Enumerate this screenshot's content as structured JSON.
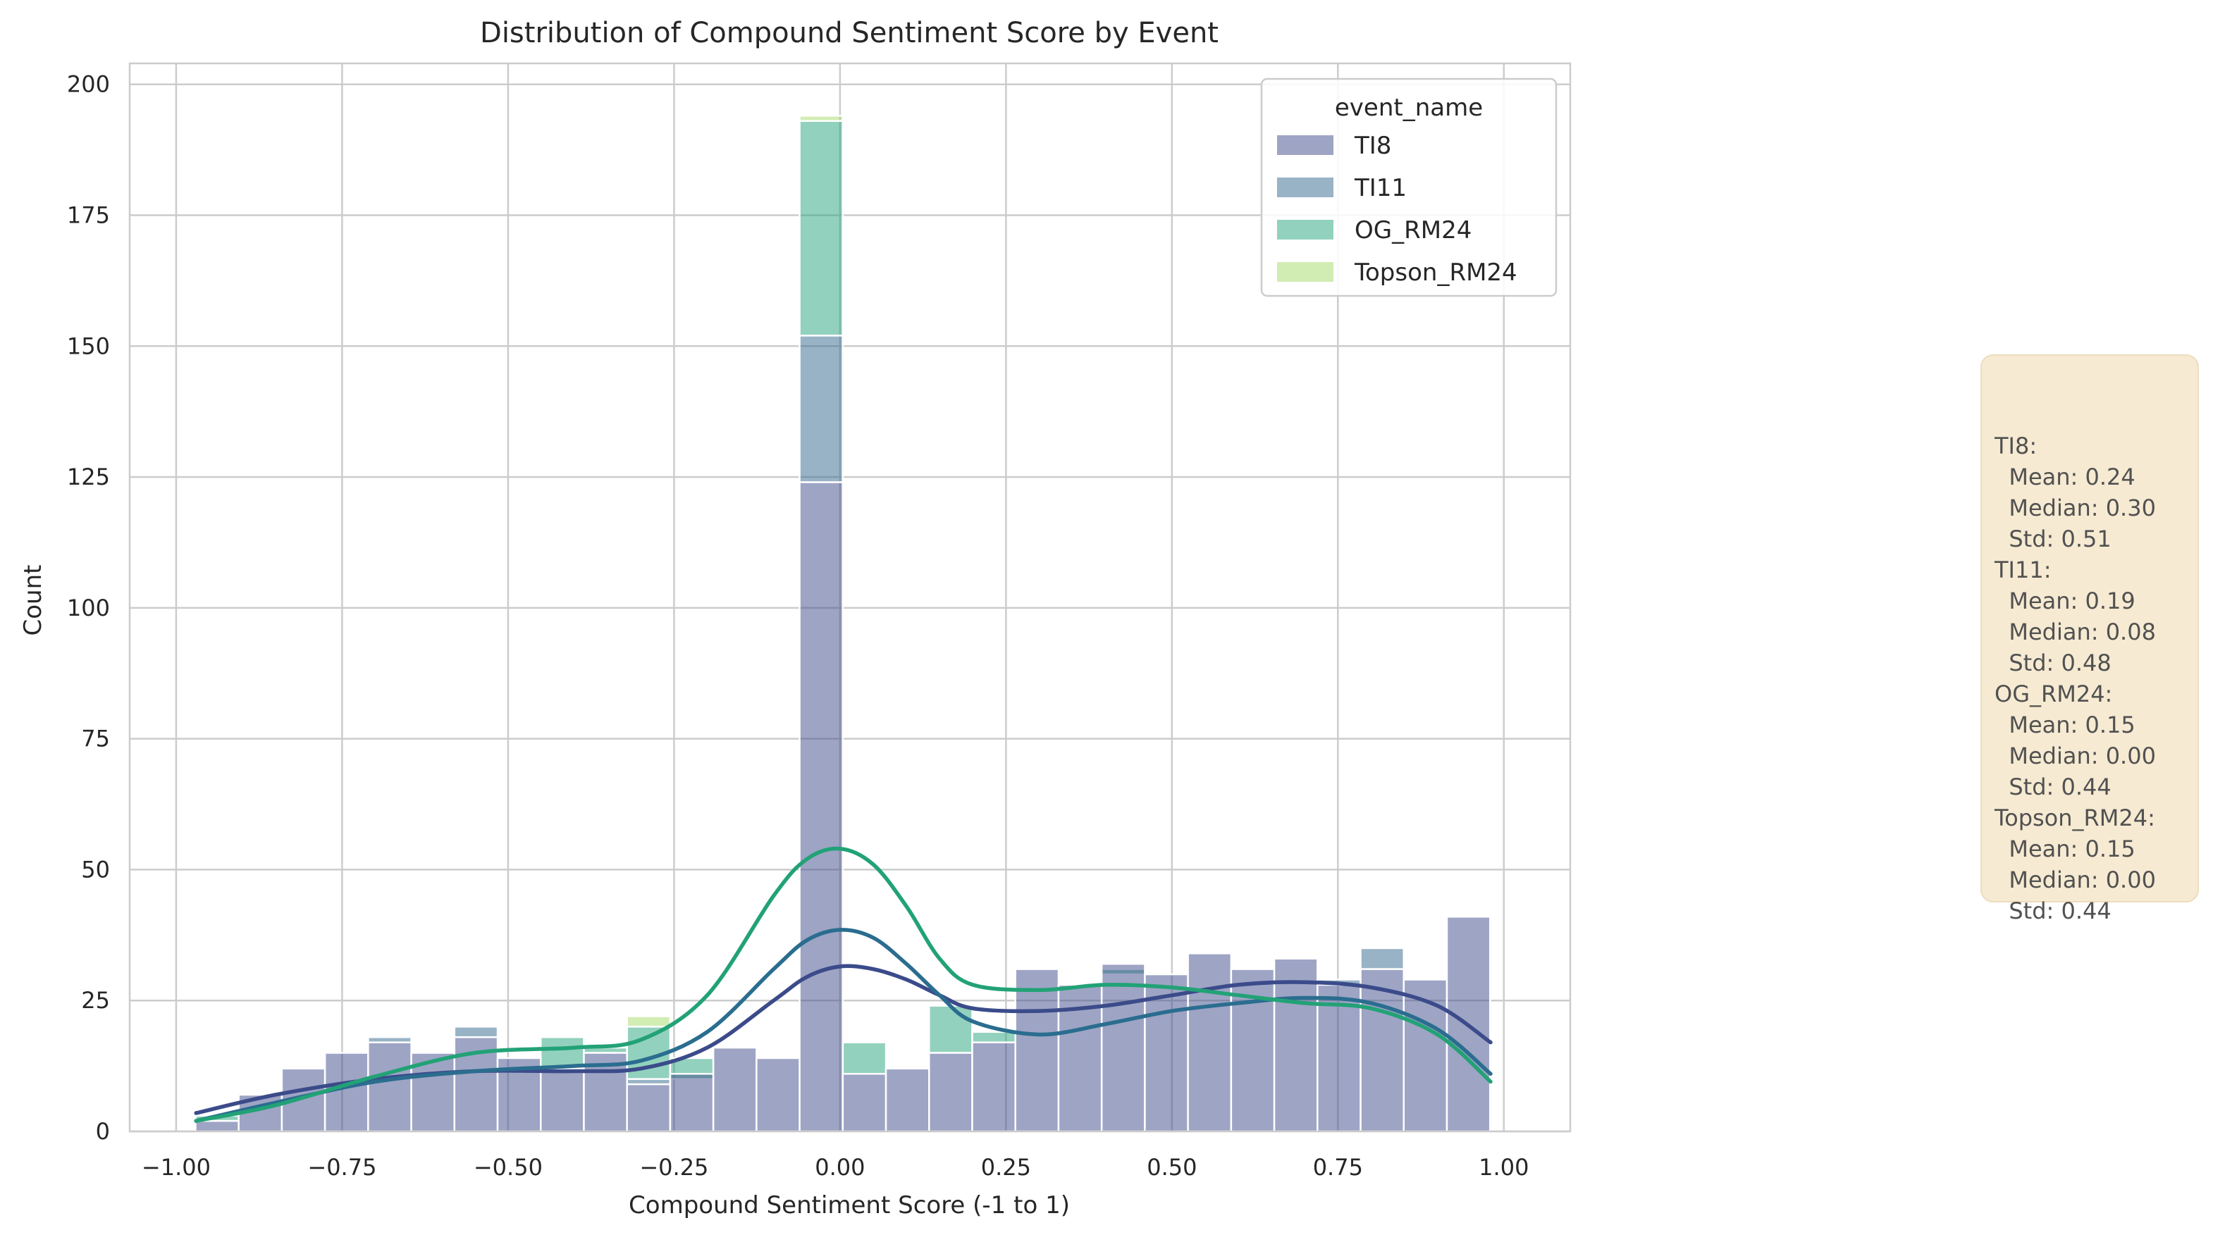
{
  "chart_data": {
    "type": "histogram",
    "title": "Distribution of Compound Sentiment Score by Event",
    "xlabel": "Compound Sentiment Score (-1 to 1)",
    "ylabel": "Count",
    "xlim": [
      -1.07,
      1.1
    ],
    "ylim": [
      0,
      204
    ],
    "xticks": [
      -1.0,
      -0.75,
      -0.5,
      -0.25,
      0.0,
      0.25,
      0.5,
      0.75,
      1.0
    ],
    "xtick_labels": [
      "−1.00",
      "−0.75",
      "−0.50",
      "−0.25",
      "0.00",
      "0.25",
      "0.50",
      "0.75",
      "1.00"
    ],
    "yticks": [
      0,
      25,
      50,
      75,
      100,
      125,
      150,
      175,
      200
    ],
    "ytick_labels": [
      "0",
      "25",
      "50",
      "75",
      "100",
      "125",
      "150",
      "175",
      "200"
    ],
    "grid": true,
    "stacked": true,
    "legend": {
      "title": "event_name",
      "position": "upper-right"
    },
    "bin_edges": [
      -0.9708,
      -0.9058,
      -0.8408,
      -0.7758,
      -0.7108,
      -0.6458,
      -0.5808,
      -0.5158,
      -0.4508,
      -0.3858,
      -0.3208,
      -0.2558,
      -0.1908,
      -0.1258,
      -0.0608,
      0.0042,
      0.0692,
      0.1342,
      0.1992,
      0.2642,
      0.3292,
      0.3942,
      0.4592,
      0.5242,
      0.5892,
      0.6542,
      0.7192,
      0.7842,
      0.8492,
      0.9142,
      0.9792
    ],
    "series": [
      {
        "name": "TI8",
        "color": "#3e4a89",
        "cumulative_top": [
          2,
          7,
          12,
          15,
          17,
          15,
          18,
          14,
          12,
          15,
          9,
          11,
          16,
          14,
          124,
          11,
          12,
          15,
          17,
          31,
          28,
          32,
          30,
          34,
          31,
          33,
          28,
          31,
          29,
          41
        ]
      },
      {
        "name": "TI11",
        "color": "#31688e",
        "cumulative_top": [
          2,
          6,
          10,
          14,
          18,
          15,
          20,
          14,
          12,
          15,
          10,
          10,
          16,
          14,
          152,
          11,
          12,
          15,
          17,
          30,
          28,
          30,
          30,
          32,
          31,
          32,
          29,
          35,
          27,
          20
        ]
      },
      {
        "name": "OG_RM24",
        "color": "#26a47c",
        "cumulative_top": [
          3,
          6,
          10,
          13,
          15,
          10,
          19,
          13,
          18,
          16,
          20,
          14,
          16,
          14,
          193,
          17,
          12,
          24,
          19,
          30,
          28,
          31,
          29,
          30,
          30,
          31,
          27,
          27,
          24,
          19
        ]
      },
      {
        "name": "Topson_RM24",
        "color": "#a5db6a",
        "cumulative_top": [
          3,
          6,
          10,
          13,
          15,
          10,
          19,
          13,
          18,
          16,
          22,
          14,
          16,
          14,
          194,
          17,
          12,
          24,
          19,
          30,
          28,
          31,
          29,
          30,
          30,
          31,
          27,
          27,
          24,
          19
        ]
      }
    ],
    "kde_curves": [
      {
        "name": "TI8",
        "color": "#3b4b8a",
        "x": [
          -0.97,
          -0.85,
          -0.7,
          -0.55,
          -0.4,
          -0.3,
          -0.2,
          -0.1,
          -0.05,
          0.0,
          0.05,
          0.1,
          0.15,
          0.2,
          0.3,
          0.4,
          0.5,
          0.6,
          0.7,
          0.8,
          0.9,
          0.98
        ],
        "y": [
          3.5,
          7,
          10,
          11.5,
          11.5,
          12,
          16,
          25,
          29.5,
          31.5,
          31,
          29,
          26,
          23.5,
          23,
          24,
          26,
          28,
          28.5,
          27.5,
          24,
          17
        ]
      },
      {
        "name": "TI11",
        "color": "#2a6d8f",
        "x": [
          -0.97,
          -0.85,
          -0.7,
          -0.55,
          -0.4,
          -0.3,
          -0.2,
          -0.1,
          -0.05,
          0.0,
          0.05,
          0.1,
          0.15,
          0.2,
          0.3,
          0.4,
          0.5,
          0.6,
          0.7,
          0.8,
          0.9,
          0.98
        ],
        "y": [
          2,
          5.5,
          9.5,
          11.5,
          12.5,
          13.5,
          19,
          31,
          36.5,
          38.5,
          37,
          32,
          26,
          21,
          18.5,
          20.5,
          23,
          24.5,
          25.5,
          24.5,
          19.5,
          11
        ]
      },
      {
        "name": "OG_RM24",
        "color": "#22a276",
        "x": [
          -0.97,
          -0.85,
          -0.7,
          -0.55,
          -0.4,
          -0.3,
          -0.2,
          -0.1,
          -0.05,
          0.0,
          0.05,
          0.1,
          0.15,
          0.2,
          0.3,
          0.4,
          0.5,
          0.6,
          0.7,
          0.8,
          0.9,
          0.98
        ],
        "y": [
          2,
          5,
          10.5,
          15,
          16,
          17.5,
          26,
          45,
          52,
          54,
          51,
          43,
          33,
          28,
          27,
          28,
          27.5,
          26,
          24.5,
          23.5,
          18.5,
          9.5
        ]
      }
    ]
  },
  "stats_box": {
    "lines": [
      "TI8:",
      "  Mean: 0.24",
      "  Median: 0.30",
      "  Std: 0.51",
      "TI11:",
      "  Mean: 0.19",
      "  Median: 0.08",
      "  Std: 0.48",
      "OG_RM24:",
      "  Mean: 0.15",
      "  Median: 0.00",
      "  Std: 0.44",
      "Topson_RM24:",
      "  Mean: 0.15",
      "  Median: 0.00",
      "  Std: 0.44"
    ]
  }
}
